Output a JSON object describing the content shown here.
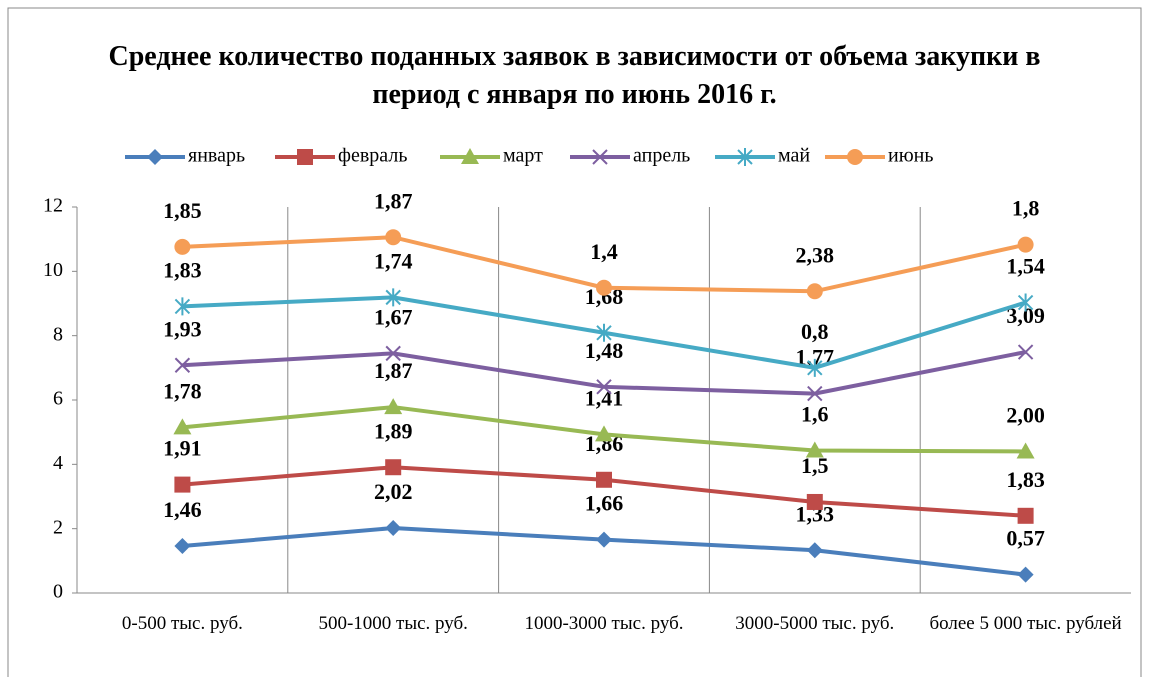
{
  "chart_data": {
    "type": "line",
    "stacked": true,
    "title": "Среднее количество поданных заявок в зависимости от объема закупки в период с января по июнь 2016 г.",
    "categories": [
      "0-500 тыс. руб.",
      "500-1000 тыс. руб.",
      "1000-3000 тыс. руб.",
      "3000-5000 тыс. руб.",
      "более 5 000 тыс. рублей"
    ],
    "ylim": [
      0,
      12
    ],
    "yticks": [
      0,
      2,
      4,
      6,
      8,
      10,
      12
    ],
    "grid": "x",
    "legend": "top",
    "series": [
      {
        "name": "январь",
        "color": "#4a7ebb",
        "marker": "diamond",
        "values": [
          1.46,
          2.02,
          1.66,
          1.33,
          0.57
        ],
        "value_labels": [
          "1,46",
          "2,02",
          "1,66",
          "1,33",
          "0,57"
        ]
      },
      {
        "name": "февраль",
        "color": "#be4b48",
        "marker": "square",
        "values": [
          1.91,
          1.89,
          1.86,
          1.5,
          1.83
        ],
        "value_labels": [
          "1,91",
          "1,89",
          "1,86",
          "1,5",
          "1,83"
        ]
      },
      {
        "name": "март",
        "color": "#98b954",
        "marker": "triangle",
        "values": [
          1.78,
          1.87,
          1.41,
          1.6,
          2.0
        ],
        "value_labels": [
          "1,78",
          "1,87",
          "1,41",
          "1,6",
          "2,00"
        ]
      },
      {
        "name": "апрель",
        "color": "#7d5fa0",
        "marker": "x",
        "values": [
          1.93,
          1.67,
          1.48,
          1.77,
          3.09
        ],
        "value_labels": [
          "1,93",
          "1,67",
          "1,48",
          "1,77",
          "3,09"
        ]
      },
      {
        "name": "май",
        "color": "#46aac5",
        "marker": "star",
        "values": [
          1.83,
          1.74,
          1.68,
          0.8,
          1.54
        ],
        "value_labels": [
          "1,83",
          "1,74",
          "1,68",
          "0,8",
          "1,54"
        ]
      },
      {
        "name": "июнь",
        "color": "#f59d56",
        "marker": "circle",
        "values": [
          1.85,
          1.87,
          1.4,
          2.38,
          1.8
        ],
        "value_labels": [
          "1,85",
          "1,87",
          "1,4",
          "2,38",
          "1,8"
        ]
      }
    ]
  }
}
